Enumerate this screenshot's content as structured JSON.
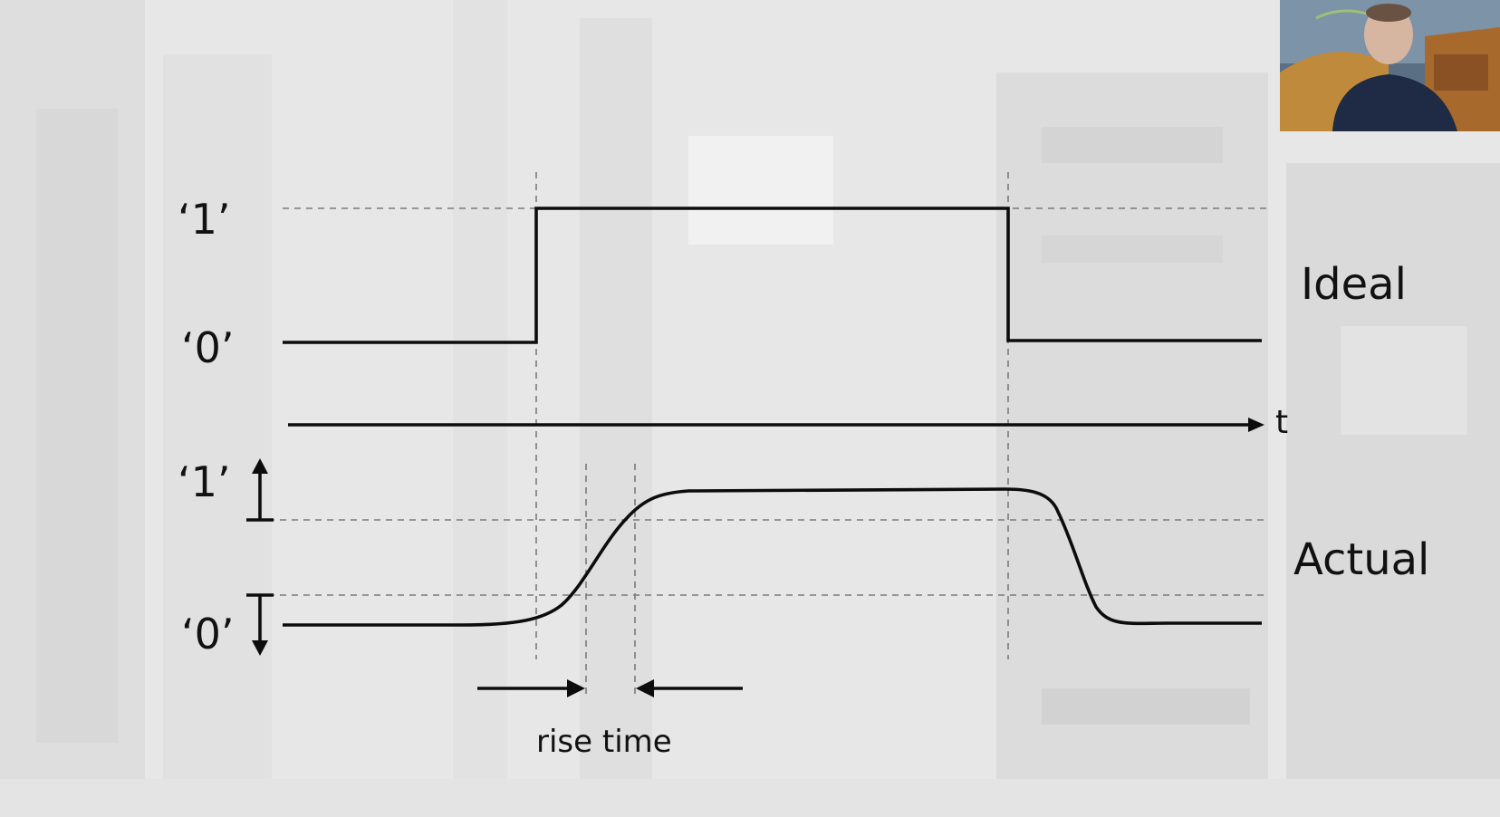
{
  "diagram": {
    "ideal": {
      "level_high": "‘1’",
      "level_low": "‘0’",
      "label": "Ideal"
    },
    "time_axis": {
      "label": "t"
    },
    "actual": {
      "level_high": "‘1’",
      "level_low": "‘0’",
      "label": "Actual"
    },
    "rise_time": {
      "label": "rise time"
    }
  },
  "colors": {
    "background": "#e9e9e9",
    "line": "#0c0c0c",
    "guide": "#7a7a7a"
  }
}
